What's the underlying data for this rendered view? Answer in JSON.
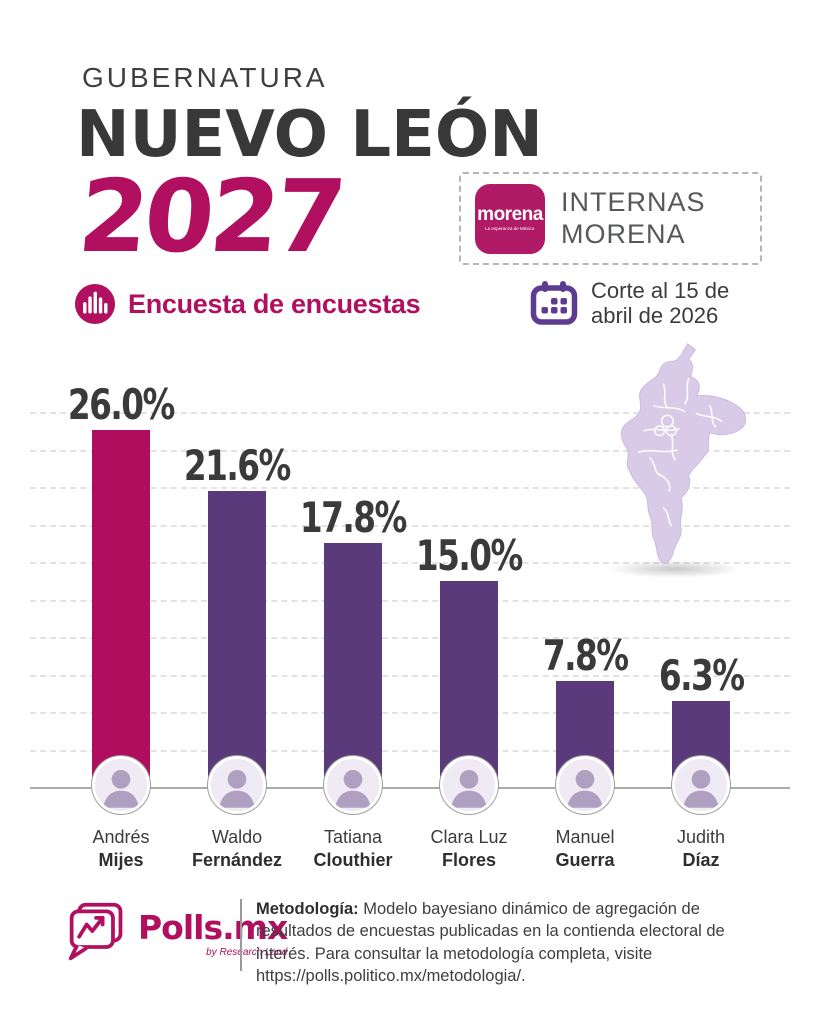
{
  "header": {
    "kicker": "GUBERNATURA",
    "title": "NUEVO LEÓN",
    "year": "2027",
    "subtitle": "Encuesta de encuestas",
    "badge": {
      "logo_word": "morena",
      "logo_tagline": "La esperanza de México",
      "label_line1": "INTERNAS",
      "label_line2": "MORENA"
    },
    "cutoff": {
      "line1": "Corte al 15 de",
      "line2": "abril de 2026"
    }
  },
  "chart_data": {
    "type": "bar",
    "title": "Encuesta de encuestas — Gubernatura Nuevo León 2027 (Internas Morena)",
    "unit": "percent",
    "ylim": [
      0,
      27.5
    ],
    "grid": "dashed horizontal",
    "legend": "none",
    "categories": [
      "Andrés Mijes",
      "Waldo Fernández",
      "Tatiana Clouthier",
      "Clara Luz Flores",
      "Manuel Guerra",
      "Judith Díaz"
    ],
    "values": [
      26.0,
      21.6,
      17.8,
      15.0,
      7.8,
      6.3
    ],
    "candidates": [
      {
        "first": "Andrés",
        "last": "Mijes",
        "value": 26.0,
        "display": "26.0%",
        "highlight": true
      },
      {
        "first": "Waldo",
        "last": "Fernández",
        "value": 21.6,
        "display": "21.6%",
        "highlight": false
      },
      {
        "first": "Tatiana",
        "last": "Clouthier",
        "value": 17.8,
        "display": "17.8%",
        "highlight": false
      },
      {
        "first": "Clara Luz",
        "last": "Flores",
        "value": 15.0,
        "display": "15.0%",
        "highlight": false
      },
      {
        "first": "Manuel",
        "last": "Guerra",
        "value": 7.8,
        "display": "7.8%",
        "highlight": false
      },
      {
        "first": "Judith",
        "last": "Díaz",
        "value": 6.3,
        "display": "6.3%",
        "highlight": false
      }
    ],
    "colors": {
      "highlight_bar": "#b00d5f",
      "bar": "#5a3a7b",
      "accent_magenta": "#b0105f",
      "calendar_purple": "#5d3b91",
      "map_fill": "#d9cbe8"
    }
  },
  "icons": {
    "poll-bars-icon": "magenta circle with white vertical bars",
    "calendar-icon": "purple calendar with dots",
    "morena-logo": "magenta rounded square wordmark",
    "polls-logo-icon": "speech bubble with zigzag trend line",
    "avatar-placeholder": "person silhouette photo",
    "nuevo-leon-map-icon": "state map with municipalities"
  },
  "footer": {
    "logo_word": "Polls.mx",
    "logo_sub": "by Research Land",
    "methodology_label": "Metodología:",
    "methodology_text": " Modelo bayesiano dinámico de agregación de resultados de encuestas publicadas en la contienda electoral de interés. Para consultar la metodología completa, visite https://polls.politico.mx/metodologia/."
  }
}
